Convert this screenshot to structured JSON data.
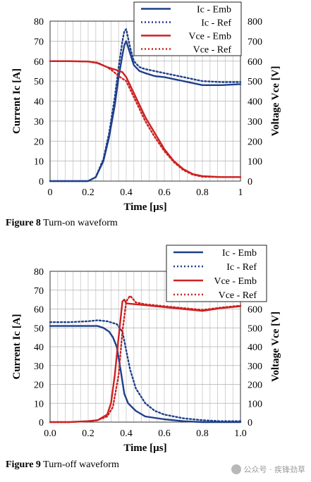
{
  "chart_data": [
    {
      "type": "line",
      "figure_label": "Figure 8",
      "caption": "Turn-on waveform",
      "xlabel": "Time [µs]",
      "ylabel": "Current Ic [A]",
      "y2label": "Voltage Vce [V]",
      "xlim": [
        0,
        1
      ],
      "ylim": [
        0,
        80
      ],
      "y2lim": [
        0,
        800
      ],
      "xticks": [
        0,
        0.2,
        0.4,
        0.6,
        0.8,
        1
      ],
      "xtick_labels": [
        "0",
        "0.2",
        "0.4",
        "0.6",
        "0.8",
        "1"
      ],
      "yticks": [
        0,
        10,
        20,
        30,
        40,
        50,
        60,
        70,
        80
      ],
      "y2ticks": [
        0,
        100,
        200,
        300,
        400,
        500,
        600,
        700,
        800
      ],
      "grid": true,
      "legend_position": "top-right",
      "series": [
        {
          "name": "Ic - Emb",
          "axis": "left",
          "color": "#1f3f8a",
          "style": "solid",
          "x": [
            0,
            0.2,
            0.24,
            0.28,
            0.31,
            0.34,
            0.36,
            0.38,
            0.39,
            0.4,
            0.42,
            0.44,
            0.47,
            0.5,
            0.55,
            0.6,
            0.7,
            0.8,
            0.9,
            1.0
          ],
          "y": [
            0,
            0,
            2,
            10,
            22,
            38,
            52,
            63,
            68,
            70,
            64,
            58,
            55,
            54,
            52.5,
            52,
            50,
            48,
            48,
            48.5
          ]
        },
        {
          "name": "Ic - Ref",
          "axis": "left",
          "color": "#1f3f8a",
          "style": "dotted",
          "x": [
            0,
            0.2,
            0.24,
            0.28,
            0.31,
            0.34,
            0.36,
            0.38,
            0.39,
            0.4,
            0.42,
            0.44,
            0.47,
            0.5,
            0.55,
            0.6,
            0.7,
            0.8,
            0.9,
            1.0
          ],
          "y": [
            0,
            0,
            2,
            11,
            24,
            42,
            57,
            70,
            75,
            76,
            67,
            60,
            57,
            56,
            55,
            54,
            52,
            50,
            49.5,
            49.5
          ]
        },
        {
          "name": "Vce - Emb",
          "axis": "right",
          "color": "#cc2222",
          "style": "solid",
          "x": [
            0,
            0.1,
            0.2,
            0.25,
            0.3,
            0.35,
            0.38,
            0.4,
            0.45,
            0.5,
            0.55,
            0.6,
            0.65,
            0.7,
            0.75,
            0.8,
            0.9,
            1.0
          ],
          "y": [
            600,
            600,
            598,
            590,
            570,
            555,
            545,
            520,
            420,
            320,
            240,
            160,
            100,
            60,
            35,
            25,
            20,
            20
          ]
        },
        {
          "name": "Vce - Ref",
          "axis": "right",
          "color": "#cc2222",
          "style": "dotted",
          "x": [
            0,
            0.1,
            0.2,
            0.25,
            0.3,
            0.33,
            0.36,
            0.4,
            0.45,
            0.5,
            0.55,
            0.6,
            0.65,
            0.7,
            0.75,
            0.8,
            0.9,
            1.0
          ],
          "y": [
            600,
            600,
            598,
            592,
            570,
            550,
            525,
            500,
            400,
            300,
            220,
            150,
            95,
            55,
            32,
            22,
            20,
            20
          ]
        }
      ]
    },
    {
      "type": "line",
      "figure_label": "Figure 9",
      "caption": "Turn-off waveform",
      "xlabel": "Time [µs]",
      "ylabel": "Current Ic [A]",
      "y2label": "Voltage Vce [V]",
      "xlim": [
        0,
        1
      ],
      "ylim": [
        0,
        80
      ],
      "y2lim": [
        0,
        800
      ],
      "xticks": [
        0,
        0.2,
        0.4,
        0.6,
        0.8,
        1
      ],
      "xtick_labels": [
        "0.0",
        "0.2",
        "0.4",
        "0.6",
        "0.8",
        "1.0"
      ],
      "yticks": [
        0,
        10,
        20,
        30,
        40,
        50,
        60,
        70,
        80
      ],
      "y2ticks": [
        0,
        100,
        200,
        300,
        400,
        500,
        600,
        700,
        800
      ],
      "grid": true,
      "legend_position": "top-right",
      "series": [
        {
          "name": "Ic - Emb",
          "axis": "left",
          "color": "#1f3f8a",
          "style": "solid",
          "x": [
            0,
            0.1,
            0.2,
            0.25,
            0.28,
            0.31,
            0.33,
            0.35,
            0.37,
            0.39,
            0.41,
            0.45,
            0.5,
            0.6,
            0.7,
            0.8,
            0.9,
            1.0
          ],
          "y": [
            51,
            51,
            51,
            51,
            50,
            48,
            45,
            40,
            28,
            15,
            10,
            6,
            3,
            1.5,
            0.5,
            0,
            0,
            0
          ]
        },
        {
          "name": "Ic - Ref",
          "axis": "left",
          "color": "#1f3f8a",
          "style": "dotted",
          "x": [
            0,
            0.1,
            0.2,
            0.25,
            0.3,
            0.35,
            0.38,
            0.4,
            0.42,
            0.45,
            0.5,
            0.55,
            0.6,
            0.7,
            0.8,
            0.9,
            1.0
          ],
          "y": [
            53,
            53,
            53.5,
            54,
            53.5,
            52,
            48,
            38,
            28,
            18,
            10,
            6,
            4,
            2,
            1,
            0.5,
            0.5
          ]
        },
        {
          "name": "Vce - Emb",
          "axis": "right",
          "color": "#cc2222",
          "style": "solid",
          "x": [
            0,
            0.1,
            0.2,
            0.25,
            0.3,
            0.32,
            0.34,
            0.36,
            0.38,
            0.39,
            0.4,
            0.45,
            0.5,
            0.6,
            0.7,
            0.8,
            0.9,
            1.0
          ],
          "y": [
            0,
            0,
            5,
            10,
            40,
            100,
            250,
            450,
            640,
            650,
            630,
            625,
            620,
            610,
            600,
            590,
            605,
            615
          ]
        },
        {
          "name": "Vce - Ref",
          "axis": "right",
          "color": "#cc2222",
          "style": "dotted",
          "x": [
            0,
            0.1,
            0.2,
            0.25,
            0.3,
            0.33,
            0.36,
            0.38,
            0.4,
            0.42,
            0.43,
            0.45,
            0.5,
            0.6,
            0.7,
            0.8,
            0.9,
            1.0
          ],
          "y": [
            0,
            0,
            5,
            10,
            30,
            80,
            250,
            480,
            640,
            670,
            660,
            635,
            625,
            615,
            605,
            595,
            608,
            618
          ]
        }
      ]
    }
  ],
  "watermark": {
    "text": "公众号 · 疾锋劲草"
  }
}
